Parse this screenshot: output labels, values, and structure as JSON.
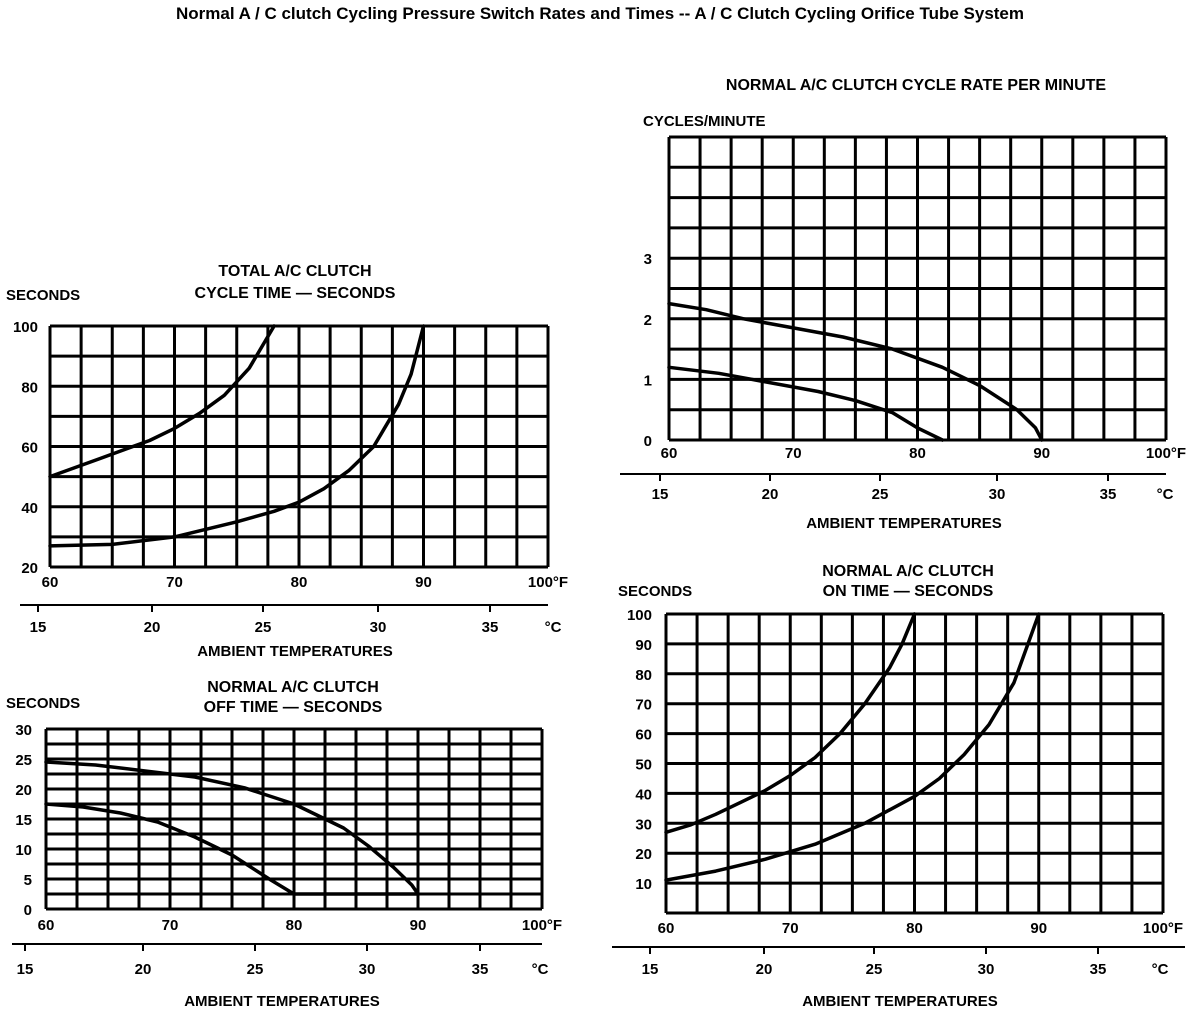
{
  "page_title": "Normal A / C clutch Cycling Pressure Switch Rates and Times --  A / C  Clutch Cycling Orifice Tube System",
  "chart_data": [
    {
      "id": "total-cycle-time",
      "type": "line",
      "title_lines": [
        "TOTAL A/C CLUTCH",
        "CYCLE TIME — SECONDS"
      ],
      "ylabel": "SECONDS",
      "xlabel": "AMBIENT TEMPERATURES",
      "x_unit": "°F",
      "c_unit": "°C",
      "xlim": [
        60,
        100
      ],
      "ylim": [
        20,
        100
      ],
      "x_ticks": [
        "60",
        "70",
        "80",
        "90",
        "100°F"
      ],
      "y_ticks": [
        "20",
        "40",
        "60",
        "80",
        "100"
      ],
      "c_ticks": [
        "15",
        "20",
        "25",
        "30",
        "35"
      ],
      "series": [
        {
          "name": "upper curve",
          "x": [
            60,
            62,
            64,
            66,
            68,
            70,
            72,
            74,
            76,
            78
          ],
          "y": [
            50,
            53,
            56,
            59,
            62,
            66,
            71,
            77,
            86,
            100
          ]
        },
        {
          "name": "lower curve",
          "x": [
            60,
            65,
            70,
            75,
            78,
            80,
            82,
            84,
            86,
            88,
            89,
            90
          ],
          "y": [
            27,
            27.5,
            30,
            35,
            38.5,
            41.5,
            46,
            52,
            60,
            74,
            84,
            100
          ]
        }
      ]
    },
    {
      "id": "off-time",
      "type": "line",
      "title_lines": [
        "NORMAL A/C CLUTCH",
        "OFF TIME — SECONDS"
      ],
      "ylabel": "SECONDS",
      "xlabel": "AMBIENT TEMPERATURES",
      "x_unit": "°F",
      "c_unit": "°C",
      "xlim": [
        60,
        100
      ],
      "ylim": [
        0,
        30
      ],
      "x_ticks": [
        "60",
        "70",
        "80",
        "90",
        "100°F"
      ],
      "y_ticks": [
        "0",
        "5",
        "10",
        "15",
        "20",
        "25",
        "30"
      ],
      "c_ticks": [
        "15",
        "20",
        "25",
        "30",
        "35"
      ],
      "series": [
        {
          "name": "upper curve",
          "x": [
            60,
            64,
            68,
            72,
            76,
            80,
            84,
            86,
            88,
            89.5,
            90
          ],
          "y": [
            24.5,
            24,
            23,
            22,
            20.2,
            17.5,
            13.5,
            10.5,
            7,
            4,
            2.5
          ]
        },
        {
          "name": "lower curve",
          "x": [
            60,
            63,
            66,
            69,
            72,
            75,
            78,
            80,
            90
          ],
          "y": [
            17.5,
            17,
            16,
            14.5,
            12,
            9,
            5,
            2.5,
            2.5
          ]
        }
      ]
    },
    {
      "id": "cycle-rate",
      "type": "line",
      "title_lines": [
        "NORMAL A/C CLUTCH CYCLE RATE PER MINUTE"
      ],
      "ylabel": "CYCLES/MINUTE",
      "xlabel": "AMBIENT TEMPERATURES",
      "x_unit": "°F",
      "c_unit": "°C",
      "xlim": [
        60,
        100
      ],
      "ylim": [
        0,
        5
      ],
      "x_ticks": [
        "60",
        "70",
        "80",
        "90",
        "100°F"
      ],
      "y_ticks": [
        "0",
        "1",
        "2",
        "3"
      ],
      "c_ticks": [
        "15",
        "20",
        "25",
        "30",
        "35"
      ],
      "series": [
        {
          "name": "upper curve",
          "x": [
            60,
            63,
            66,
            70,
            74,
            78,
            82,
            85,
            88,
            89.5,
            90
          ],
          "y": [
            2.25,
            2.15,
            2.0,
            1.85,
            1.7,
            1.5,
            1.2,
            0.9,
            0.5,
            0.2,
            0
          ]
        },
        {
          "name": "lower curve",
          "x": [
            60,
            64,
            68,
            72,
            75,
            78,
            80,
            82
          ],
          "y": [
            1.2,
            1.1,
            0.95,
            0.8,
            0.65,
            0.45,
            0.2,
            0
          ]
        }
      ]
    },
    {
      "id": "on-time",
      "type": "line",
      "title_lines": [
        "NORMAL A/C CLUTCH",
        "ON TIME — SECONDS"
      ],
      "ylabel": "SECONDS",
      "xlabel": "AMBIENT TEMPERATURES",
      "x_unit": "°F",
      "c_unit": "°C",
      "xlim": [
        60,
        100
      ],
      "ylim": [
        0,
        100
      ],
      "x_ticks": [
        "60",
        "70",
        "80",
        "90",
        "100°F"
      ],
      "y_ticks": [
        "10",
        "20",
        "30",
        "40",
        "50",
        "60",
        "70",
        "80",
        "90",
        "100"
      ],
      "c_ticks": [
        "15",
        "20",
        "25",
        "30",
        "35"
      ],
      "series": [
        {
          "name": "upper curve",
          "x": [
            60,
            62,
            64,
            66,
            68,
            70,
            72,
            74,
            76,
            78,
            79,
            80
          ],
          "y": [
            27,
            29.5,
            33,
            37,
            41,
            46,
            52,
            60,
            70,
            82,
            90,
            100
          ]
        },
        {
          "name": "lower curve",
          "x": [
            60,
            64,
            68,
            72,
            76,
            80,
            82,
            84,
            86,
            88,
            90
          ],
          "y": [
            11,
            14,
            18,
            23,
            30,
            39,
            45,
            53,
            63,
            77,
            100
          ]
        }
      ]
    }
  ]
}
